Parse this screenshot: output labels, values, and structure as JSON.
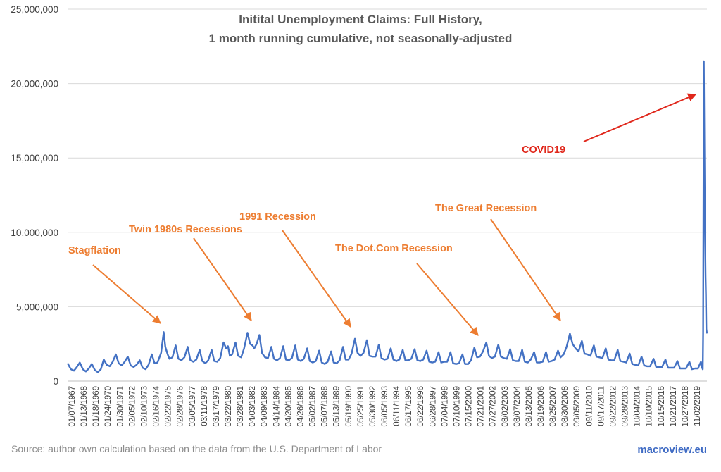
{
  "chart_data": {
    "type": "line",
    "title_lines": [
      "Initital Unemployment Claims: Full History,",
      "1 month running cumulative, not seasonally-adjusted"
    ],
    "source": "Source: author own calculation based on the data from the U.S. Department of Labor",
    "brand": "macroview.eu",
    "ylim": [
      0,
      25000000
    ],
    "yticks": [
      0,
      5000000,
      10000000,
      15000000,
      20000000,
      25000000
    ],
    "ytick_labels": [
      "0",
      "5,000,000",
      "10,000,000",
      "15,000,000",
      "20,000,000",
      "25,000,000"
    ],
    "x_range": [
      1967.02,
      2020.55
    ],
    "x_tick_labels": [
      "01/07/1967",
      "01/13/1968",
      "01/18/1969",
      "01/24/1970",
      "01/30/1971",
      "02/05/1972",
      "02/10/1973",
      "02/16/1974",
      "02/22/1975",
      "02/28/1976",
      "03/05/1977",
      "03/11/1978",
      "03/17/1979",
      "03/22/1980",
      "03/28/1981",
      "04/03/1982",
      "04/09/1983",
      "04/14/1984",
      "04/20/1985",
      "04/26/1986",
      "05/02/1987",
      "05/07/1988",
      "05/13/1989",
      "05/19/1990",
      "05/25/1991",
      "05/30/1992",
      "06/05/1993",
      "06/11/1994",
      "06/17/1995",
      "06/22/1996",
      "06/28/1997",
      "07/04/1998",
      "07/10/1999",
      "07/15/2000",
      "07/21/2001",
      "07/27/2002",
      "08/02/2003",
      "08/07/2004",
      "08/13/2005",
      "08/19/2006",
      "08/25/2007",
      "08/30/2008",
      "09/05/2009",
      "09/11/2010",
      "09/17/2011",
      "09/22/2012",
      "09/28/2013",
      "10/04/2014",
      "10/10/2015",
      "10/15/2016",
      "10/21/2017",
      "10/27/2018",
      "11/02/2019"
    ],
    "series": [
      {
        "color": "#4472C4",
        "points": [
          [
            1967.02,
            1200000
          ],
          [
            1967.3,
            800000
          ],
          [
            1967.55,
            700000
          ],
          [
            1967.8,
            950000
          ],
          [
            1968.04,
            1250000
          ],
          [
            1968.3,
            800000
          ],
          [
            1968.55,
            650000
          ],
          [
            1968.8,
            850000
          ],
          [
            1969.05,
            1150000
          ],
          [
            1969.3,
            750000
          ],
          [
            1969.55,
            600000
          ],
          [
            1969.8,
            800000
          ],
          [
            1970.05,
            1450000
          ],
          [
            1970.3,
            1100000
          ],
          [
            1970.55,
            1000000
          ],
          [
            1970.8,
            1300000
          ],
          [
            1971.06,
            1800000
          ],
          [
            1971.3,
            1200000
          ],
          [
            1971.55,
            1050000
          ],
          [
            1971.8,
            1300000
          ],
          [
            1972.06,
            1650000
          ],
          [
            1972.3,
            1050000
          ],
          [
            1972.55,
            950000
          ],
          [
            1972.8,
            1100000
          ],
          [
            1973.06,
            1400000
          ],
          [
            1973.3,
            900000
          ],
          [
            1973.55,
            800000
          ],
          [
            1973.8,
            1100000
          ],
          [
            1974.07,
            1800000
          ],
          [
            1974.3,
            1200000
          ],
          [
            1974.55,
            1250000
          ],
          [
            1974.85,
            1900000
          ],
          [
            1975.07,
            3300000
          ],
          [
            1975.2,
            2300000
          ],
          [
            1975.4,
            1800000
          ],
          [
            1975.55,
            1500000
          ],
          [
            1975.8,
            1600000
          ],
          [
            1976.07,
            2400000
          ],
          [
            1976.3,
            1500000
          ],
          [
            1976.55,
            1400000
          ],
          [
            1976.8,
            1600000
          ],
          [
            1977.08,
            2300000
          ],
          [
            1977.3,
            1400000
          ],
          [
            1977.55,
            1300000
          ],
          [
            1977.8,
            1450000
          ],
          [
            1978.08,
            2100000
          ],
          [
            1978.3,
            1350000
          ],
          [
            1978.55,
            1200000
          ],
          [
            1978.8,
            1400000
          ],
          [
            1979.08,
            2100000
          ],
          [
            1979.3,
            1350000
          ],
          [
            1979.55,
            1300000
          ],
          [
            1979.8,
            1550000
          ],
          [
            1980.08,
            2600000
          ],
          [
            1980.3,
            2200000
          ],
          [
            1980.45,
            2350000
          ],
          [
            1980.6,
            1700000
          ],
          [
            1980.8,
            1800000
          ],
          [
            1981.08,
            2600000
          ],
          [
            1981.3,
            1700000
          ],
          [
            1981.55,
            1600000
          ],
          [
            1981.8,
            2200000
          ],
          [
            1982.08,
            3250000
          ],
          [
            1982.3,
            2500000
          ],
          [
            1982.5,
            2400000
          ],
          [
            1982.65,
            2200000
          ],
          [
            1982.85,
            2500000
          ],
          [
            1983.08,
            3100000
          ],
          [
            1983.3,
            1900000
          ],
          [
            1983.55,
            1600000
          ],
          [
            1983.8,
            1550000
          ],
          [
            1984.08,
            2300000
          ],
          [
            1984.3,
            1500000
          ],
          [
            1984.55,
            1400000
          ],
          [
            1984.8,
            1550000
          ],
          [
            1985.08,
            2350000
          ],
          [
            1985.3,
            1450000
          ],
          [
            1985.55,
            1400000
          ],
          [
            1985.8,
            1550000
          ],
          [
            1986.08,
            2400000
          ],
          [
            1986.3,
            1450000
          ],
          [
            1986.55,
            1350000
          ],
          [
            1986.8,
            1500000
          ],
          [
            1987.08,
            2200000
          ],
          [
            1987.3,
            1350000
          ],
          [
            1987.55,
            1250000
          ],
          [
            1987.8,
            1350000
          ],
          [
            1988.08,
            2050000
          ],
          [
            1988.3,
            1250000
          ],
          [
            1988.55,
            1150000
          ],
          [
            1988.8,
            1300000
          ],
          [
            1989.08,
            2000000
          ],
          [
            1989.3,
            1250000
          ],
          [
            1989.55,
            1200000
          ],
          [
            1989.8,
            1400000
          ],
          [
            1990.08,
            2300000
          ],
          [
            1990.3,
            1450000
          ],
          [
            1990.55,
            1450000
          ],
          [
            1990.8,
            1850000
          ],
          [
            1991.08,
            2850000
          ],
          [
            1991.3,
            1900000
          ],
          [
            1991.55,
            1700000
          ],
          [
            1991.8,
            1900000
          ],
          [
            1992.08,
            2750000
          ],
          [
            1992.3,
            1700000
          ],
          [
            1992.55,
            1650000
          ],
          [
            1992.8,
            1650000
          ],
          [
            1993.08,
            2450000
          ],
          [
            1993.3,
            1550000
          ],
          [
            1993.55,
            1450000
          ],
          [
            1993.8,
            1500000
          ],
          [
            1994.08,
            2200000
          ],
          [
            1994.3,
            1450000
          ],
          [
            1994.55,
            1350000
          ],
          [
            1994.8,
            1450000
          ],
          [
            1995.08,
            2100000
          ],
          [
            1995.3,
            1400000
          ],
          [
            1995.55,
            1400000
          ],
          [
            1995.8,
            1500000
          ],
          [
            1996.08,
            2150000
          ],
          [
            1996.3,
            1400000
          ],
          [
            1996.55,
            1350000
          ],
          [
            1996.8,
            1450000
          ],
          [
            1997.08,
            2050000
          ],
          [
            1997.3,
            1300000
          ],
          [
            1997.55,
            1250000
          ],
          [
            1997.8,
            1300000
          ],
          [
            1998.08,
            1950000
          ],
          [
            1998.3,
            1250000
          ],
          [
            1998.55,
            1300000
          ],
          [
            1998.8,
            1300000
          ],
          [
            1999.08,
            1950000
          ],
          [
            1999.3,
            1200000
          ],
          [
            1999.55,
            1150000
          ],
          [
            1999.8,
            1200000
          ],
          [
            2000.08,
            1800000
          ],
          [
            2000.3,
            1150000
          ],
          [
            2000.55,
            1150000
          ],
          [
            2000.8,
            1400000
          ],
          [
            2001.08,
            2250000
          ],
          [
            2001.3,
            1600000
          ],
          [
            2001.55,
            1650000
          ],
          [
            2001.8,
            2000000
          ],
          [
            2002.08,
            2600000
          ],
          [
            2002.3,
            1700000
          ],
          [
            2002.55,
            1550000
          ],
          [
            2002.8,
            1650000
          ],
          [
            2003.08,
            2450000
          ],
          [
            2003.3,
            1650000
          ],
          [
            2003.55,
            1550000
          ],
          [
            2003.8,
            1500000
          ],
          [
            2004.08,
            2150000
          ],
          [
            2004.3,
            1400000
          ],
          [
            2004.55,
            1350000
          ],
          [
            2004.8,
            1350000
          ],
          [
            2005.08,
            2100000
          ],
          [
            2005.3,
            1300000
          ],
          [
            2005.55,
            1250000
          ],
          [
            2005.8,
            1450000
          ],
          [
            2006.08,
            1950000
          ],
          [
            2006.3,
            1250000
          ],
          [
            2006.55,
            1250000
          ],
          [
            2006.8,
            1300000
          ],
          [
            2007.08,
            1950000
          ],
          [
            2007.3,
            1300000
          ],
          [
            2007.55,
            1350000
          ],
          [
            2007.8,
            1450000
          ],
          [
            2008.08,
            2050000
          ],
          [
            2008.3,
            1600000
          ],
          [
            2008.55,
            1800000
          ],
          [
            2008.8,
            2300000
          ],
          [
            2009.08,
            3200000
          ],
          [
            2009.3,
            2500000
          ],
          [
            2009.55,
            2200000
          ],
          [
            2009.8,
            2000000
          ],
          [
            2010.08,
            2700000
          ],
          [
            2010.3,
            1850000
          ],
          [
            2010.55,
            1800000
          ],
          [
            2010.8,
            1700000
          ],
          [
            2011.08,
            2400000
          ],
          [
            2011.3,
            1650000
          ],
          [
            2011.55,
            1600000
          ],
          [
            2011.8,
            1550000
          ],
          [
            2012.08,
            2200000
          ],
          [
            2012.3,
            1450000
          ],
          [
            2012.55,
            1400000
          ],
          [
            2012.8,
            1400000
          ],
          [
            2013.08,
            2100000
          ],
          [
            2013.3,
            1350000
          ],
          [
            2013.55,
            1300000
          ],
          [
            2013.8,
            1250000
          ],
          [
            2014.08,
            1850000
          ],
          [
            2014.3,
            1150000
          ],
          [
            2014.55,
            1100000
          ],
          [
            2014.8,
            1050000
          ],
          [
            2015.08,
            1650000
          ],
          [
            2015.3,
            1050000
          ],
          [
            2015.55,
            1000000
          ],
          [
            2015.8,
            1000000
          ],
          [
            2016.08,
            1500000
          ],
          [
            2016.3,
            950000
          ],
          [
            2016.55,
            950000
          ],
          [
            2016.8,
            950000
          ],
          [
            2017.08,
            1450000
          ],
          [
            2017.3,
            900000
          ],
          [
            2017.55,
            900000
          ],
          [
            2017.8,
            900000
          ],
          [
            2018.08,
            1350000
          ],
          [
            2018.3,
            850000
          ],
          [
            2018.55,
            850000
          ],
          [
            2018.8,
            850000
          ],
          [
            2019.08,
            1300000
          ],
          [
            2019.3,
            800000
          ],
          [
            2019.55,
            850000
          ],
          [
            2019.8,
            850000
          ],
          [
            2020.05,
            1300000
          ],
          [
            2020.15,
            900000
          ],
          [
            2020.2,
            800000
          ],
          [
            2020.23,
            3200000
          ],
          [
            2020.26,
            12000000
          ],
          [
            2020.29,
            21500000
          ],
          [
            2020.32,
            18000000
          ],
          [
            2020.36,
            13000000
          ],
          [
            2020.4,
            9500000
          ],
          [
            2020.44,
            7000000
          ],
          [
            2020.47,
            5800000
          ],
          [
            2020.5,
            3500000
          ],
          [
            2020.55,
            3200000
          ]
        ]
      }
    ],
    "annotations": [
      {
        "text": "Stagflation",
        "color": "#ED7D31"
      },
      {
        "text": "Twin 1980s Recessions",
        "color": "#ED7D31"
      },
      {
        "text": "1991 Recession",
        "color": "#ED7D31"
      },
      {
        "text": "The Dot.Com Recession",
        "color": "#ED7D31"
      },
      {
        "text": "The Great Recession",
        "color": "#ED7D31"
      },
      {
        "text": "COVID19",
        "color": "#E0271B"
      }
    ]
  }
}
